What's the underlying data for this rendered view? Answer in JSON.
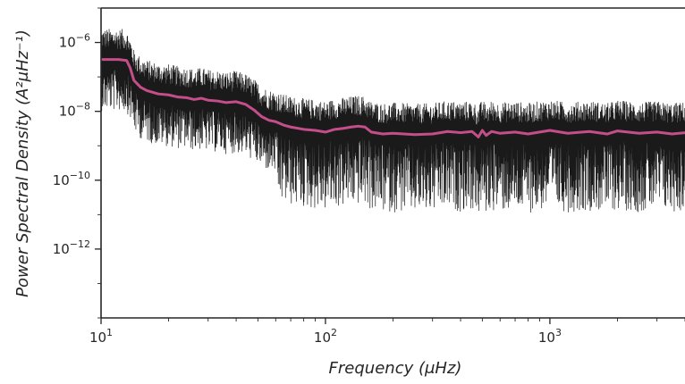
{
  "chart_data": {
    "type": "line",
    "xlabel": "Frequency (μHz)",
    "ylabel": "Power Spectral Density (A²μHz⁻¹)",
    "x_scale": "log",
    "y_scale": "log",
    "xlim": [
      10,
      4000
    ],
    "ylim": [
      1e-14,
      1e-05
    ],
    "x_ticks": [
      {
        "value": 10,
        "base": "10",
        "exp": "1"
      },
      {
        "value": 100,
        "base": "10",
        "exp": "2"
      },
      {
        "value": 1000,
        "base": "10",
        "exp": "3"
      }
    ],
    "y_ticks": [
      {
        "value": 1e-06,
        "base": "10",
        "exp": "−6"
      },
      {
        "value": 1e-08,
        "base": "10",
        "exp": "−8"
      },
      {
        "value": 1e-10,
        "base": "10",
        "exp": "−10"
      },
      {
        "value": 1e-12,
        "base": "10",
        "exp": "−12"
      }
    ],
    "grid": false,
    "series": [
      {
        "kind": "raw-spectrum",
        "color": "#1a1a1a",
        "style": "noisy periodogram, sampled envelope values",
        "x": [
          10,
          10.5,
          11,
          11.5,
          12,
          12.5,
          13,
          14,
          15,
          16,
          17,
          18,
          19,
          20,
          22,
          24,
          26,
          28,
          30,
          33,
          36,
          40,
          44,
          48,
          52,
          56,
          60,
          65,
          70,
          75,
          80,
          90,
          100,
          120,
          140,
          160,
          200,
          250,
          300,
          400,
          500,
          700,
          1000,
          1500,
          2000,
          2500,
          3000,
          4000
        ],
        "y": [
          2e-08,
          4e-08,
          6e-08,
          3e-09,
          5e-08,
          2e-09,
          3e-08,
          8e-09,
          1e-07,
          2e-09,
          6e-08,
          5e-09,
          1e-07,
          3e-09,
          5e-08,
          2e-08,
          8e-08,
          3e-09,
          1e-07,
          5e-09,
          7e-08,
          2e-09,
          4e-08,
          6e-10,
          3e-08,
          2e-10,
          1.5e-08,
          5e-10,
          1.2e-08,
          3e-10,
          8e-09,
          2e-10,
          5e-11,
          1e-08,
          3e-11,
          9e-09,
          4e-11,
          1e-08,
          2e-11,
          9e-09,
          3e-11,
          1e-08,
          2e-11,
          1e-08,
          3e-11,
          8e-09,
          2e-11,
          6e-09
        ]
      },
      {
        "kind": "smoothed-spectrum",
        "color": "#c44e8a",
        "x": [
          10,
          11,
          12,
          13,
          13.5,
          14,
          15,
          16,
          18,
          20,
          22,
          24,
          26,
          28,
          30,
          33,
          36,
          40,
          44,
          48,
          52,
          56,
          60,
          65,
          70,
          80,
          90,
          100,
          110,
          120,
          130,
          140,
          150,
          160,
          180,
          200,
          250,
          300,
          350,
          400,
          450,
          480,
          500,
          520,
          550,
          600,
          700,
          800,
          1000,
          1200,
          1500,
          1800,
          2000,
          2500,
          3000,
          3500,
          4000
        ],
        "y": [
          3.2e-07,
          3.2e-07,
          3.2e-07,
          3e-07,
          1.8e-07,
          8e-08,
          5e-08,
          4e-08,
          3.2e-08,
          3e-08,
          2.6e-08,
          2.5e-08,
          2.2e-08,
          2.4e-08,
          2.1e-08,
          2e-08,
          1.8e-08,
          1.9e-08,
          1.6e-08,
          1.1e-08,
          7e-09,
          5.5e-09,
          5e-09,
          4e-09,
          3.5e-09,
          3e-09,
          2.8e-09,
          2.5e-09,
          3e-09,
          3.2e-09,
          3.5e-09,
          3.7e-09,
          3.5e-09,
          2.5e-09,
          2.2e-09,
          2.3e-09,
          2.1e-09,
          2.2e-09,
          2.6e-09,
          2.4e-09,
          2.6e-09,
          1.8e-09,
          2.8e-09,
          2e-09,
          2.6e-09,
          2.3e-09,
          2.5e-09,
          2.2e-09,
          2.8e-09,
          2.3e-09,
          2.6e-09,
          2.2e-09,
          2.7e-09,
          2.3e-09,
          2.5e-09,
          2.2e-09,
          2.4e-09
        ]
      }
    ]
  }
}
